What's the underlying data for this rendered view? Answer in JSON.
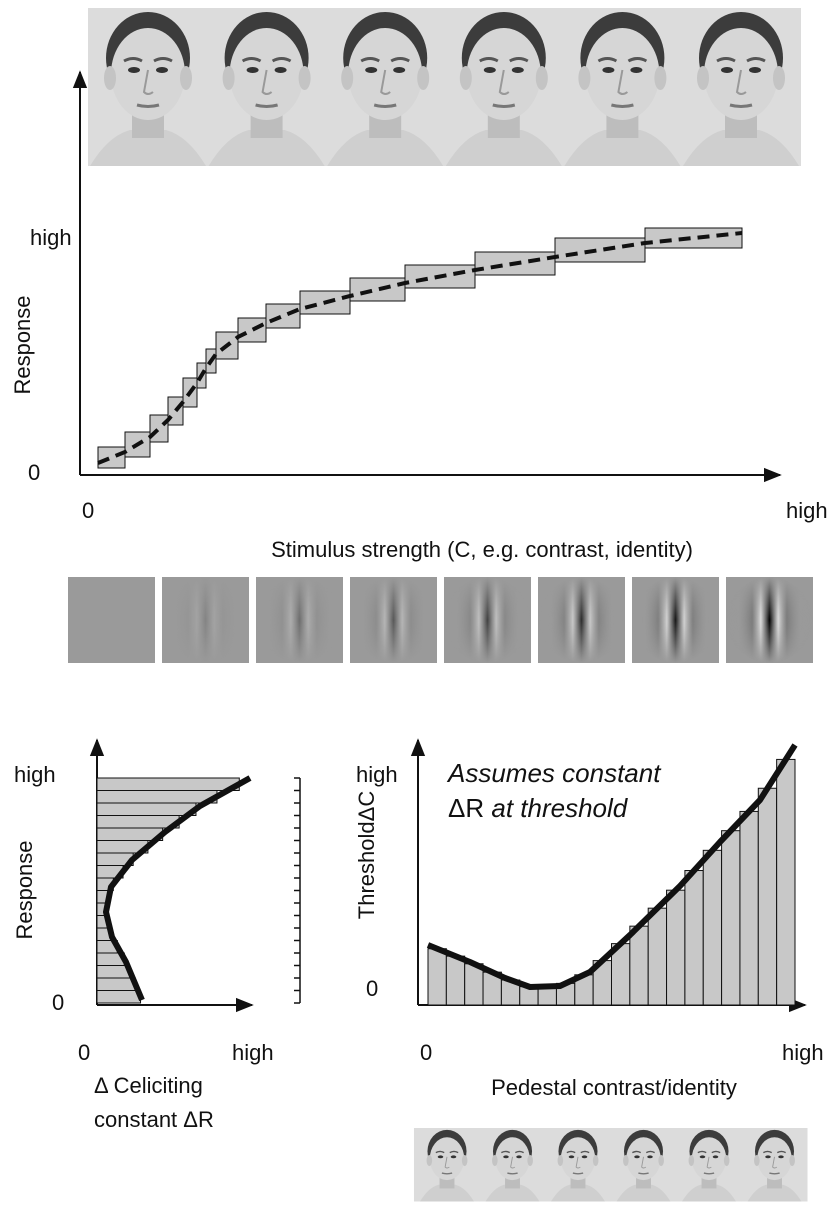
{
  "top_panel": {
    "y_high": "high",
    "y_zero": "0",
    "y_label": "Response",
    "x_zero": "0",
    "x_high": "high",
    "x_label": "Stimulus strength (C, e.g. contrast, identity)"
  },
  "left_panel": {
    "y_high": "high",
    "y_zero": "0",
    "y_label": "Response",
    "x_zero": "0",
    "x_high": "high",
    "x_label_line1": "Δ Celiciting",
    "x_label_line2": "constant ΔR"
  },
  "right_panel": {
    "y_high": "high",
    "y_zero": "0",
    "y_label": "ThresholdΔC",
    "x_zero": "0",
    "x_high": "high",
    "x_label": "Pedestal contrast/identity",
    "note_line1": "Assumes constant",
    "note_line2_symbol": "ΔR",
    "note_line2_text": "at threshold"
  }
}
